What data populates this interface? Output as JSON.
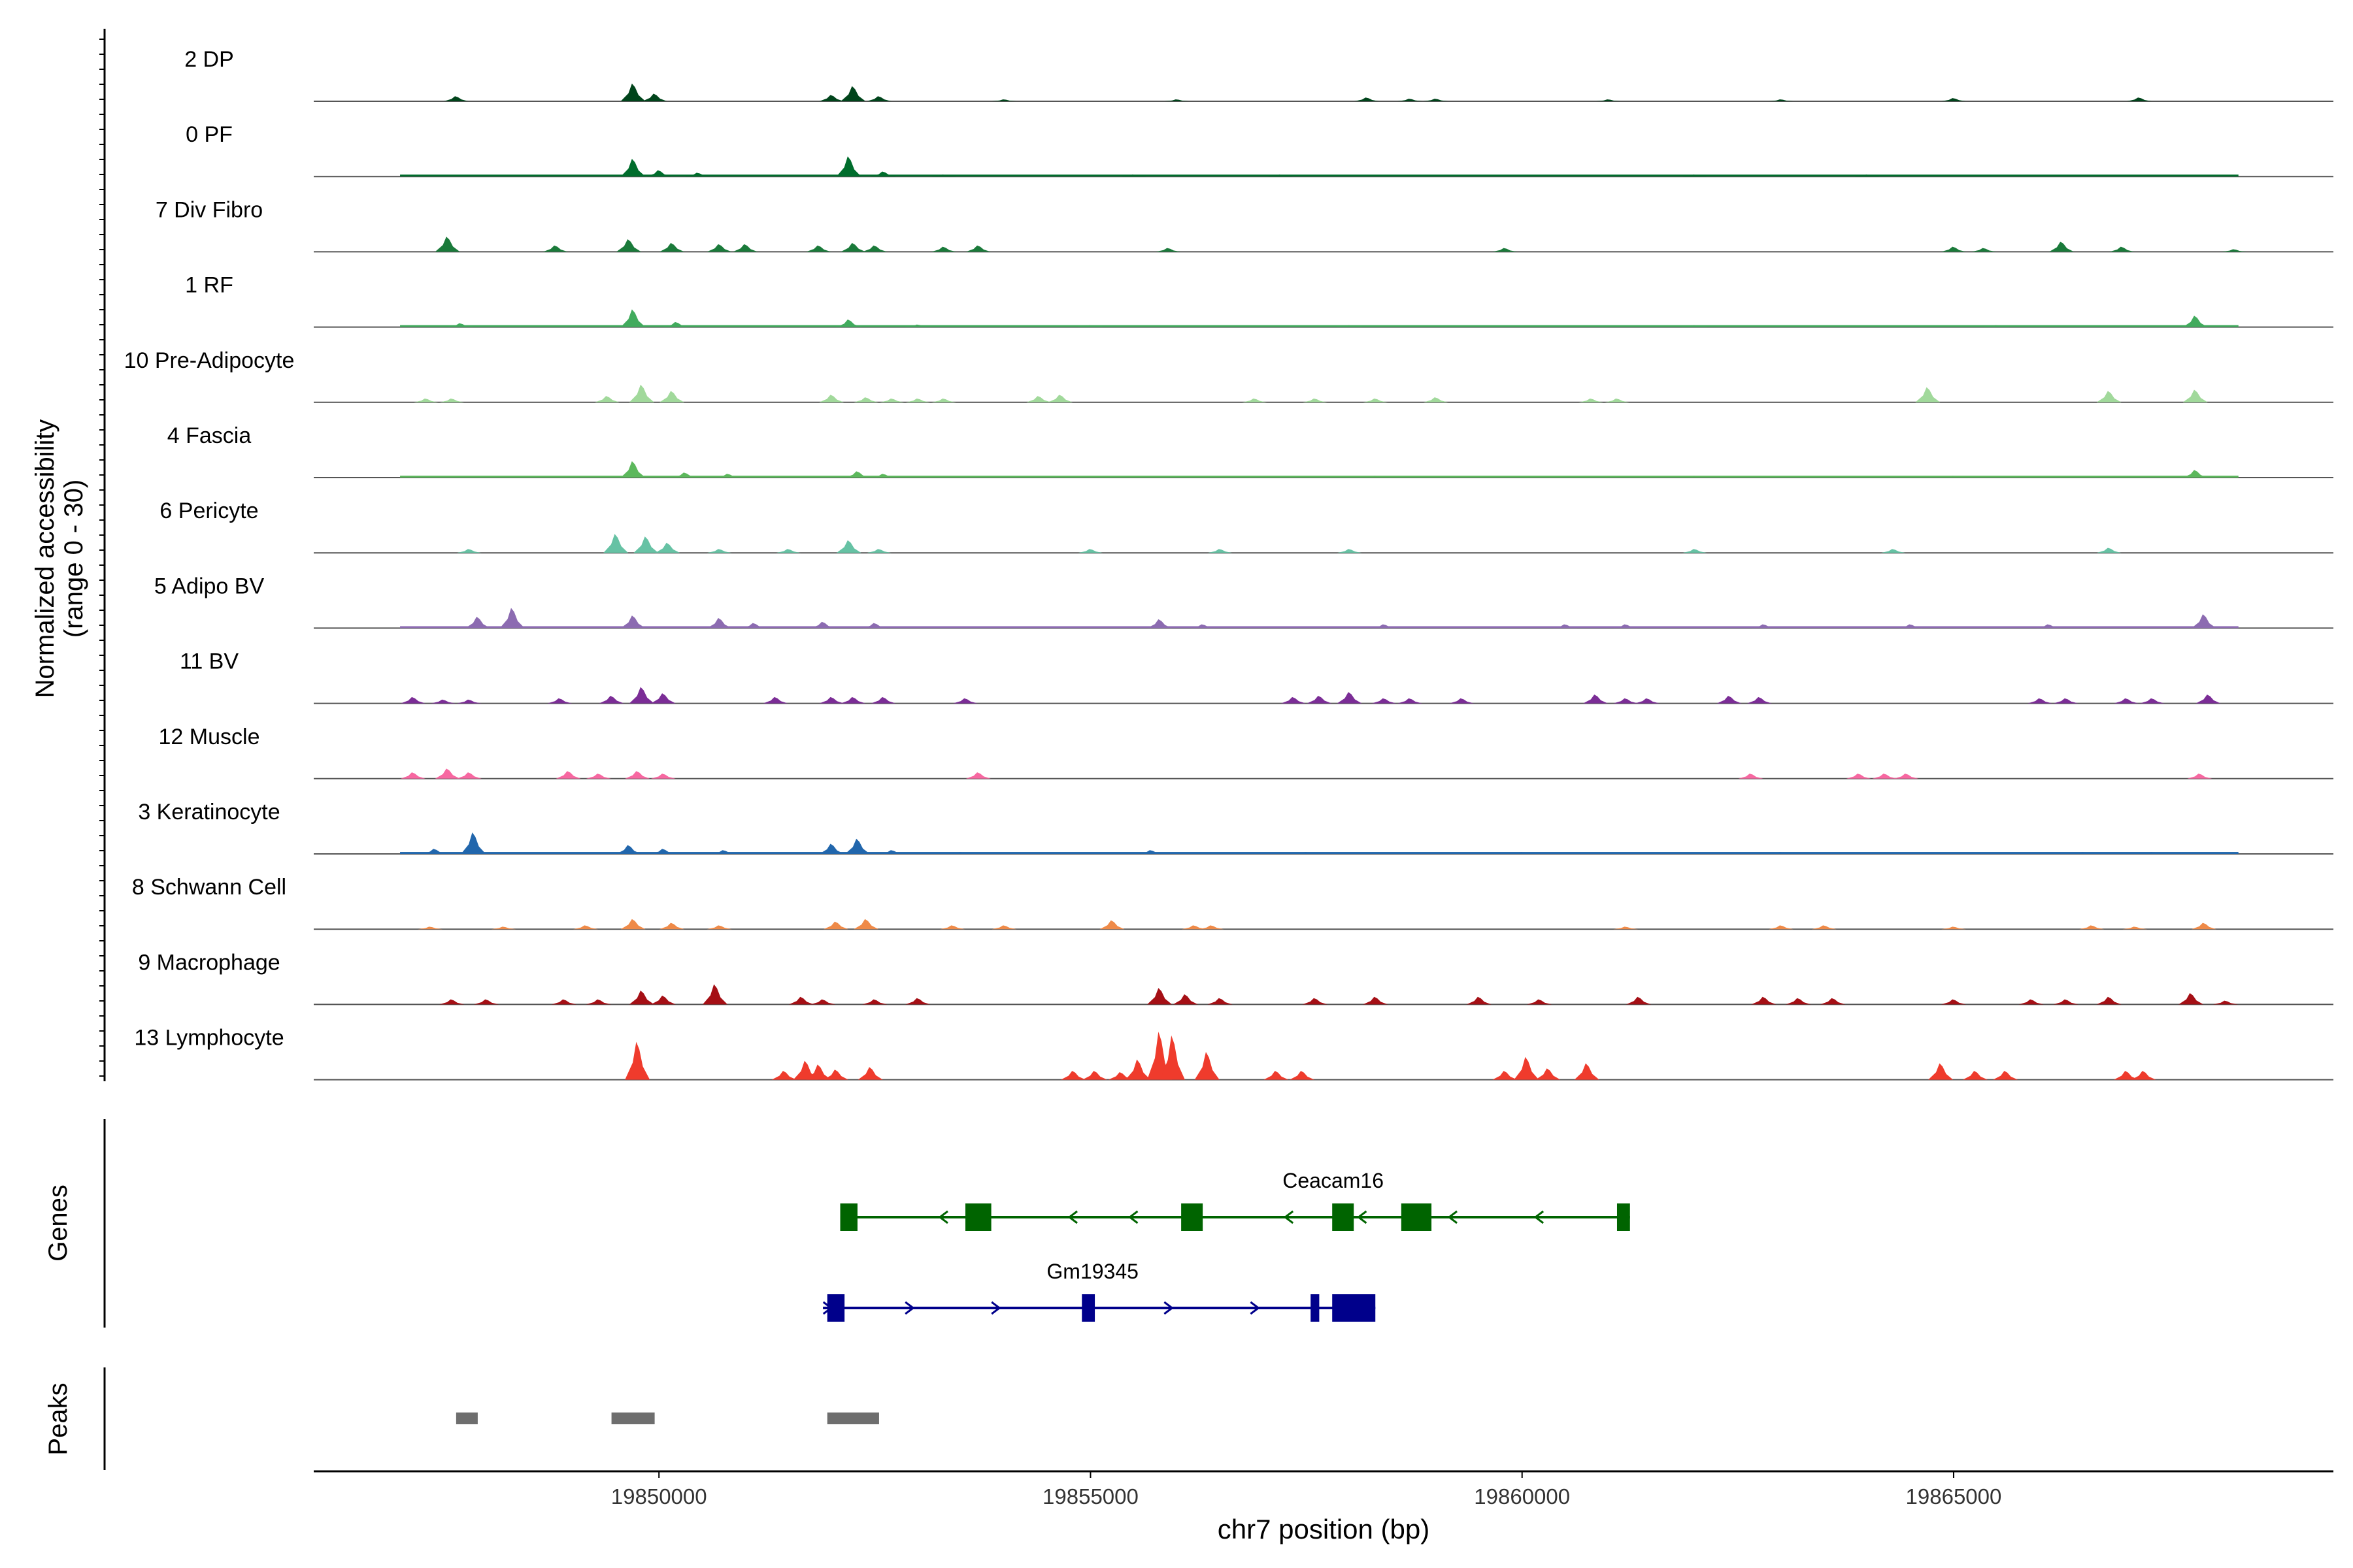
{
  "chart_data": {
    "type": "area",
    "title": "",
    "chromosome": "chr7",
    "xlabel": "chr7 position (bp)",
    "ylabel_line1": "Normalized accessibility",
    "ylabel_line2": "(range 0 - 30)",
    "xlim": [
      19846000,
      19869400
    ],
    "x_ticks": [
      19850000,
      19855000,
      19860000,
      19865000
    ],
    "x_tick_labels": [
      "19850000",
      "19855000",
      "19860000",
      "19865000"
    ],
    "signal_range": [
      0,
      30
    ],
    "signal_extent": [
      19846000,
      19868300
    ],
    "peak_default_width_bp": 90,
    "tracks": [
      {
        "name": "2 DP",
        "color": "#00441b",
        "start": 19846000,
        "end": 19868300,
        "baseline": 0,
        "peaks": [
          [
            19847650,
            4
          ],
          [
            19849700,
            14
          ],
          [
            19849950,
            6
          ],
          [
            19852000,
            5
          ],
          [
            19852250,
            12
          ],
          [
            19852550,
            4
          ],
          [
            19854000,
            1.5
          ],
          [
            19856000,
            1.5
          ],
          [
            19858200,
            3
          ],
          [
            19858700,
            2
          ],
          [
            19859000,
            2
          ],
          [
            19861000,
            1.5
          ],
          [
            19863000,
            1.5
          ],
          [
            19865000,
            2.5
          ],
          [
            19867150,
            3
          ]
        ]
      },
      {
        "name": "0 PF",
        "color": "#006d2c",
        "start": 19847000,
        "end": 19868300,
        "baseline": 1,
        "peaks": [
          [
            19849700,
            14
          ],
          [
            19850000,
            5
          ],
          [
            19850450,
            3
          ],
          [
            19852200,
            16
          ],
          [
            19852600,
            4
          ],
          [
            19853300,
            1.5
          ],
          [
            19855500,
            1.5
          ],
          [
            19857200,
            1.5
          ],
          [
            19862000,
            1.5
          ],
          [
            19864000,
            1.5
          ]
        ]
      },
      {
        "name": "7 Div Fibro",
        "color": "#1a7a3a",
        "start": 19846000,
        "end": 19868300,
        "baseline": 0,
        "peaks": [
          [
            19847550,
            12
          ],
          [
            19848800,
            5
          ],
          [
            19849650,
            10
          ],
          [
            19850150,
            7
          ],
          [
            19850700,
            6
          ],
          [
            19851000,
            6
          ],
          [
            19851850,
            5
          ],
          [
            19852250,
            7
          ],
          [
            19852500,
            5
          ],
          [
            19853300,
            4
          ],
          [
            19853700,
            5
          ],
          [
            19855900,
            3
          ],
          [
            19859800,
            3
          ],
          [
            19865000,
            4
          ],
          [
            19865350,
            3
          ],
          [
            19866250,
            8
          ],
          [
            19866950,
            4
          ],
          [
            19868250,
            2
          ]
        ]
      },
      {
        "name": "1 RF",
        "color": "#41ab5d",
        "start": 19847000,
        "end": 19868300,
        "baseline": 1,
        "peaks": [
          [
            19847700,
            3
          ],
          [
            19849700,
            14
          ],
          [
            19850200,
            4
          ],
          [
            19852200,
            6
          ],
          [
            19853000,
            2
          ],
          [
            19855000,
            1.5
          ],
          [
            19858000,
            1.5
          ],
          [
            19862000,
            1.5
          ],
          [
            19865500,
            1.5
          ],
          [
            19867800,
            9
          ]
        ]
      },
      {
        "name": "10 Pre-Adipocyte",
        "color": "#a1d99b",
        "start": 19846000,
        "end": 19868300,
        "baseline": 0,
        "peaks": [
          [
            19847300,
            3
          ],
          [
            19847600,
            3
          ],
          [
            19849400,
            5
          ],
          [
            19849800,
            14
          ],
          [
            19850150,
            9
          ],
          [
            19852000,
            6
          ],
          [
            19852400,
            4
          ],
          [
            19852700,
            3
          ],
          [
            19853000,
            3
          ],
          [
            19853300,
            3
          ],
          [
            19854400,
            5
          ],
          [
            19854650,
            6
          ],
          [
            19856900,
            3
          ],
          [
            19857600,
            3
          ],
          [
            19858300,
            3
          ],
          [
            19859000,
            4
          ],
          [
            19860800,
            3
          ],
          [
            19861100,
            3
          ],
          [
            19864700,
            12
          ],
          [
            19866800,
            9
          ],
          [
            19867800,
            10
          ]
        ]
      },
      {
        "name": "4 Fascia",
        "color": "#5cb85c",
        "start": 19847000,
        "end": 19868300,
        "baseline": 1,
        "peaks": [
          [
            19849700,
            13
          ],
          [
            19850300,
            4
          ],
          [
            19850800,
            3
          ],
          [
            19852300,
            5
          ],
          [
            19852600,
            3
          ],
          [
            19858300,
            1.5
          ],
          [
            19862000,
            1.5
          ],
          [
            19865000,
            1.5
          ],
          [
            19867800,
            6
          ]
        ]
      },
      {
        "name": "6 Pericyte",
        "color": "#66c2a4",
        "start": 19846000,
        "end": 19868300,
        "baseline": 0,
        "peaks": [
          [
            19847800,
            3
          ],
          [
            19849500,
            15
          ],
          [
            19849850,
            13
          ],
          [
            19850100,
            8
          ],
          [
            19850700,
            3
          ],
          [
            19851500,
            3
          ],
          [
            19852200,
            10
          ],
          [
            19852550,
            3
          ],
          [
            19855000,
            3
          ],
          [
            19856500,
            3
          ],
          [
            19858000,
            3
          ],
          [
            19862000,
            3
          ],
          [
            19864300,
            3
          ],
          [
            19866800,
            4
          ]
        ]
      },
      {
        "name": "5 Adipo BV",
        "color": "#8c6bb1",
        "start": 19847000,
        "end": 19868300,
        "baseline": 1,
        "peaks": [
          [
            19847900,
            9
          ],
          [
            19848300,
            16
          ],
          [
            19849700,
            10
          ],
          [
            19850700,
            8
          ],
          [
            19851100,
            4
          ],
          [
            19851900,
            5
          ],
          [
            19852500,
            4
          ],
          [
            19855800,
            7
          ],
          [
            19856300,
            3
          ],
          [
            19858400,
            3
          ],
          [
            19860500,
            3
          ],
          [
            19861200,
            3
          ],
          [
            19862800,
            3
          ],
          [
            19864500,
            3
          ],
          [
            19866100,
            3
          ],
          [
            19867900,
            11
          ]
        ]
      },
      {
        "name": "11 BV",
        "color": "#7b2d96",
        "start": 19846000,
        "end": 19868300,
        "baseline": 0,
        "peaks": [
          [
            19847150,
            5
          ],
          [
            19847500,
            3
          ],
          [
            19847800,
            3
          ],
          [
            19848850,
            4
          ],
          [
            19849450,
            6
          ],
          [
            19849800,
            13
          ],
          [
            19850050,
            8
          ],
          [
            19851350,
            5
          ],
          [
            19852000,
            5
          ],
          [
            19852250,
            5
          ],
          [
            19852600,
            5
          ],
          [
            19853550,
            4
          ],
          [
            19857350,
            5
          ],
          [
            19857650,
            6
          ],
          [
            19858000,
            9
          ],
          [
            19858400,
            4
          ],
          [
            19858700,
            4
          ],
          [
            19859300,
            4
          ],
          [
            19860850,
            7
          ],
          [
            19861200,
            4
          ],
          [
            19861450,
            4
          ],
          [
            19862400,
            6
          ],
          [
            19862750,
            5
          ],
          [
            19866000,
            4
          ],
          [
            19866300,
            4
          ],
          [
            19867000,
            4
          ],
          [
            19867300,
            4
          ],
          [
            19867950,
            7
          ]
        ]
      },
      {
        "name": "12 Muscle",
        "color": "#f768a1",
        "start": 19846000,
        "end": 19868300,
        "baseline": 0,
        "peaks": [
          [
            19847150,
            5
          ],
          [
            19847550,
            8
          ],
          [
            19847800,
            5
          ],
          [
            19848950,
            6
          ],
          [
            19849300,
            4
          ],
          [
            19849750,
            6
          ],
          [
            19850050,
            4
          ],
          [
            19853700,
            5
          ],
          [
            19862650,
            4
          ],
          [
            19863900,
            4
          ],
          [
            19864200,
            4
          ],
          [
            19864450,
            4
          ],
          [
            19867850,
            4
          ]
        ]
      },
      {
        "name": "3 Keratinocyte",
        "color": "#2166ac",
        "start": 19847000,
        "end": 19868300,
        "baseline": 1,
        "peaks": [
          [
            19847400,
            4
          ],
          [
            19847850,
            17
          ],
          [
            19849650,
            7
          ],
          [
            19850050,
            4
          ],
          [
            19850750,
            3
          ],
          [
            19852000,
            8
          ],
          [
            19852300,
            12
          ],
          [
            19852700,
            3
          ],
          [
            19853500,
            1.5
          ],
          [
            19855700,
            3
          ],
          [
            19857500,
            1.5
          ],
          [
            19860000,
            1.5
          ],
          [
            19863000,
            1.5
          ],
          [
            19866500,
            1.5
          ],
          [
            19867300,
            1.5
          ]
        ]
      },
      {
        "name": "8 Schwann Cell",
        "color": "#ef8a48",
        "start": 19846000,
        "end": 19868300,
        "baseline": 0,
        "peaks": [
          [
            19847350,
            2
          ],
          [
            19848200,
            2
          ],
          [
            19849150,
            3
          ],
          [
            19849700,
            8
          ],
          [
            19850150,
            5
          ],
          [
            19850700,
            3
          ],
          [
            19852050,
            6
          ],
          [
            19852400,
            8
          ],
          [
            19853400,
            3
          ],
          [
            19854000,
            3
          ],
          [
            19855250,
            7
          ],
          [
            19856200,
            3
          ],
          [
            19856400,
            3
          ],
          [
            19861200,
            2
          ],
          [
            19863000,
            3
          ],
          [
            19863500,
            3
          ],
          [
            19865000,
            2
          ],
          [
            19866600,
            3
          ],
          [
            19867100,
            2
          ],
          [
            19867900,
            5
          ]
        ]
      },
      {
        "name": "9 Macrophage",
        "color": "#a50f15",
        "start": 19846000,
        "end": 19868300,
        "baseline": 0,
        "peaks": [
          [
            19847600,
            4
          ],
          [
            19848000,
            4
          ],
          [
            19848900,
            4
          ],
          [
            19849300,
            4
          ],
          [
            19849800,
            11
          ],
          [
            19850050,
            7
          ],
          [
            19850650,
            16
          ],
          [
            19851650,
            6
          ],
          [
            19851900,
            4
          ],
          [
            19852500,
            4
          ],
          [
            19853000,
            5
          ],
          [
            19855800,
            13
          ],
          [
            19856100,
            8
          ],
          [
            19856500,
            5
          ],
          [
            19857600,
            5
          ],
          [
            19858300,
            6
          ],
          [
            19859500,
            6
          ],
          [
            19860200,
            4
          ],
          [
            19861350,
            6
          ],
          [
            19862800,
            6
          ],
          [
            19863200,
            5
          ],
          [
            19863600,
            5
          ],
          [
            19865000,
            4
          ],
          [
            19865900,
            4
          ],
          [
            19866300,
            4
          ],
          [
            19866800,
            6
          ],
          [
            19867750,
            9
          ],
          [
            19868150,
            3
          ]
        ]
      },
      {
        "name": "13 Lymphocyte",
        "color": "#ef3b2c",
        "start": 19846000,
        "end": 19868300,
        "baseline": 0,
        "peaks": [
          [
            19849750,
            30
          ],
          [
            19851450,
            7
          ],
          [
            19851700,
            15
          ],
          [
            19851850,
            12
          ],
          [
            19852050,
            8
          ],
          [
            19852450,
            10
          ],
          [
            19854800,
            7
          ],
          [
            19855050,
            7
          ],
          [
            19855350,
            6
          ],
          [
            19855550,
            16
          ],
          [
            19855800,
            38
          ],
          [
            19855950,
            35
          ],
          [
            19856350,
            22
          ],
          [
            19857150,
            7
          ],
          [
            19857450,
            7
          ],
          [
            19859800,
            7
          ],
          [
            19860050,
            18
          ],
          [
            19860300,
            9
          ],
          [
            19860750,
            13
          ],
          [
            19864850,
            13
          ],
          [
            19865250,
            7
          ],
          [
            19865600,
            7
          ],
          [
            19867000,
            7
          ],
          [
            19867200,
            7
          ]
        ]
      }
    ],
    "genes": [
      {
        "name": "Ceacam16",
        "color": "#006400",
        "strand": "-",
        "start": 19852100,
        "end": 19861250,
        "exons": [
          [
            19852100,
            19852300
          ],
          [
            19853550,
            19853850
          ],
          [
            19856050,
            19856300
          ],
          [
            19857800,
            19858050
          ],
          [
            19858600,
            19858950
          ],
          [
            19861100,
            19861250
          ]
        ],
        "arrows": [
          19853300,
          19854800,
          19855500,
          19857300,
          19858150,
          19859200,
          19860200
        ]
      },
      {
        "name": "Gm19345",
        "color": "#00008b",
        "strand": "+",
        "start": 19851900,
        "end": 19858300,
        "exons": [
          [
            19851950,
            19852150
          ],
          [
            19854900,
            19855050
          ],
          [
            19857550,
            19857650
          ],
          [
            19857800,
            19858300
          ]
        ],
        "arrows": [
          19851950,
          19852900,
          19853900,
          19855900,
          19856900
        ]
      }
    ],
    "peaks_track": [
      [
        19847650,
        19847900
      ],
      [
        19849450,
        19849950
      ],
      [
        19851950,
        19852550
      ]
    ]
  },
  "colors": {
    "axis": "#000000",
    "baseline": "#555555",
    "peak_bar": "#6e6e6e"
  },
  "labels": {
    "genes_panel": "Genes",
    "peaks_panel": "Peaks"
  }
}
